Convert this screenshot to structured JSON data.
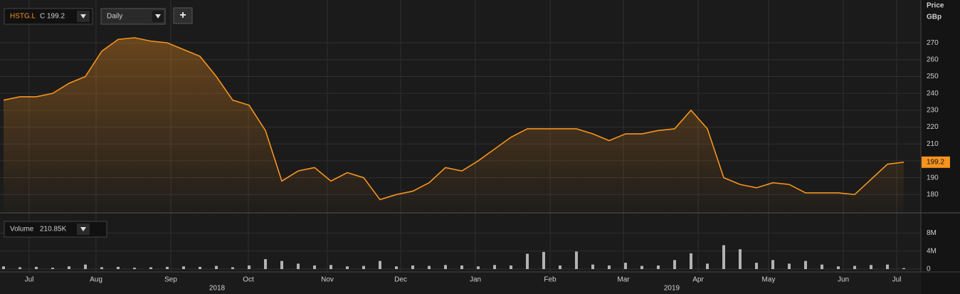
{
  "header": {
    "ticker": "HSTG.L",
    "close_prefix": "C",
    "interval": "Daily",
    "add_button": "+"
  },
  "chart_data": [
    {
      "type": "line",
      "y_axis_title": "Price",
      "y_axis_unit": "GBp",
      "series": [
        {
          "name": "HSTG.L",
          "color": "#f7931e",
          "values": [
            236,
            238,
            238,
            240,
            246,
            250,
            265,
            272,
            273,
            271,
            270,
            266,
            262,
            250,
            236,
            233,
            218,
            188,
            194,
            196,
            188,
            193,
            190,
            177,
            180,
            182,
            187,
            196,
            194,
            200,
            207,
            214,
            219,
            219,
            219,
            219,
            216,
            212,
            216,
            216,
            218,
            219,
            230,
            219,
            190,
            186,
            184,
            187,
            186,
            181,
            181,
            181,
            180,
            189,
            198,
            199.2
          ]
        }
      ],
      "ylim": [
        170,
        292
      ],
      "yticks": [
        180,
        190,
        200,
        210,
        220,
        230,
        240,
        250,
        260,
        270
      ],
      "grid": true,
      "month_labels": [
        "Jul",
        "Aug",
        "Sep",
        "Oct",
        "Nov",
        "Dec",
        "Jan",
        "Feb",
        "Mar",
        "Apr",
        "May",
        "Jun",
        "Jul"
      ],
      "year_labels": [
        "2018",
        "2019"
      ]
    },
    {
      "type": "bar",
      "title": "Volume",
      "legend_value_label": "210.85K",
      "color": "#d9d9d9",
      "values": [
        600000,
        400000,
        500000,
        300000,
        600000,
        1000000,
        400000,
        500000,
        300000,
        400000,
        500000,
        600000,
        500000,
        700000,
        400000,
        800000,
        2200000,
        1800000,
        1200000,
        800000,
        900000,
        600000,
        700000,
        1800000,
        600000,
        800000,
        700000,
        900000,
        800000,
        600000,
        900000,
        800000,
        3400000,
        3800000,
        800000,
        3900000,
        1000000,
        800000,
        1400000,
        700000,
        800000,
        2000000,
        3500000,
        1200000,
        5300000,
        4400000,
        1400000,
        2000000,
        1200000,
        1800000,
        1000000,
        600000,
        700000,
        900000,
        1000000,
        210850
      ],
      "ylim": [
        0,
        12000000
      ],
      "yticks": [
        0,
        {
          "value": 4000000,
          "label": "4M"
        },
        {
          "value": 8000000,
          "label": "8M"
        }
      ],
      "grid": true
    }
  ]
}
